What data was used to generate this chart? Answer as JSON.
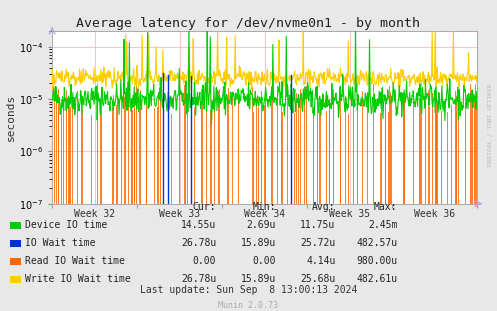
{
  "title": "Average latency for /dev/nvme0n1 - by month",
  "ylabel": "seconds",
  "background_color": "#e8e8e8",
  "plot_bg_color": "#ffffff",
  "week_labels": [
    "Week 32",
    "Week 33",
    "Week 34",
    "Week 35",
    "Week 36"
  ],
  "ylim_low": 1e-07,
  "ylim_high": 0.0002,
  "legend_items": [
    {
      "label": "Device IO time",
      "color": "#00cc00"
    },
    {
      "label": "IO Wait time",
      "color": "#0033cc"
    },
    {
      "label": "Read IO Wait time",
      "color": "#ff6600"
    },
    {
      "label": "Write IO Wait time",
      "color": "#ffcc00"
    }
  ],
  "legend_cols": [
    {
      "header": "Cur:",
      "values": [
        "14.55u",
        "26.78u",
        "0.00",
        "26.78u"
      ]
    },
    {
      "header": "Min:",
      "values": [
        "2.69u",
        "15.89u",
        "0.00",
        "15.89u"
      ]
    },
    {
      "header": "Avg:",
      "values": [
        "11.75u",
        "25.72u",
        "4.14u",
        "25.68u"
      ]
    },
    {
      "header": "Max:",
      "values": [
        "2.45m",
        "482.57u",
        "980.00u",
        "482.61u"
      ]
    }
  ],
  "last_update": "Last update: Sun Sep  8 13:00:13 2024",
  "munin_version": "Munin 2.0.73",
  "watermark": "RRDTOOL / TOBI OETIKER"
}
